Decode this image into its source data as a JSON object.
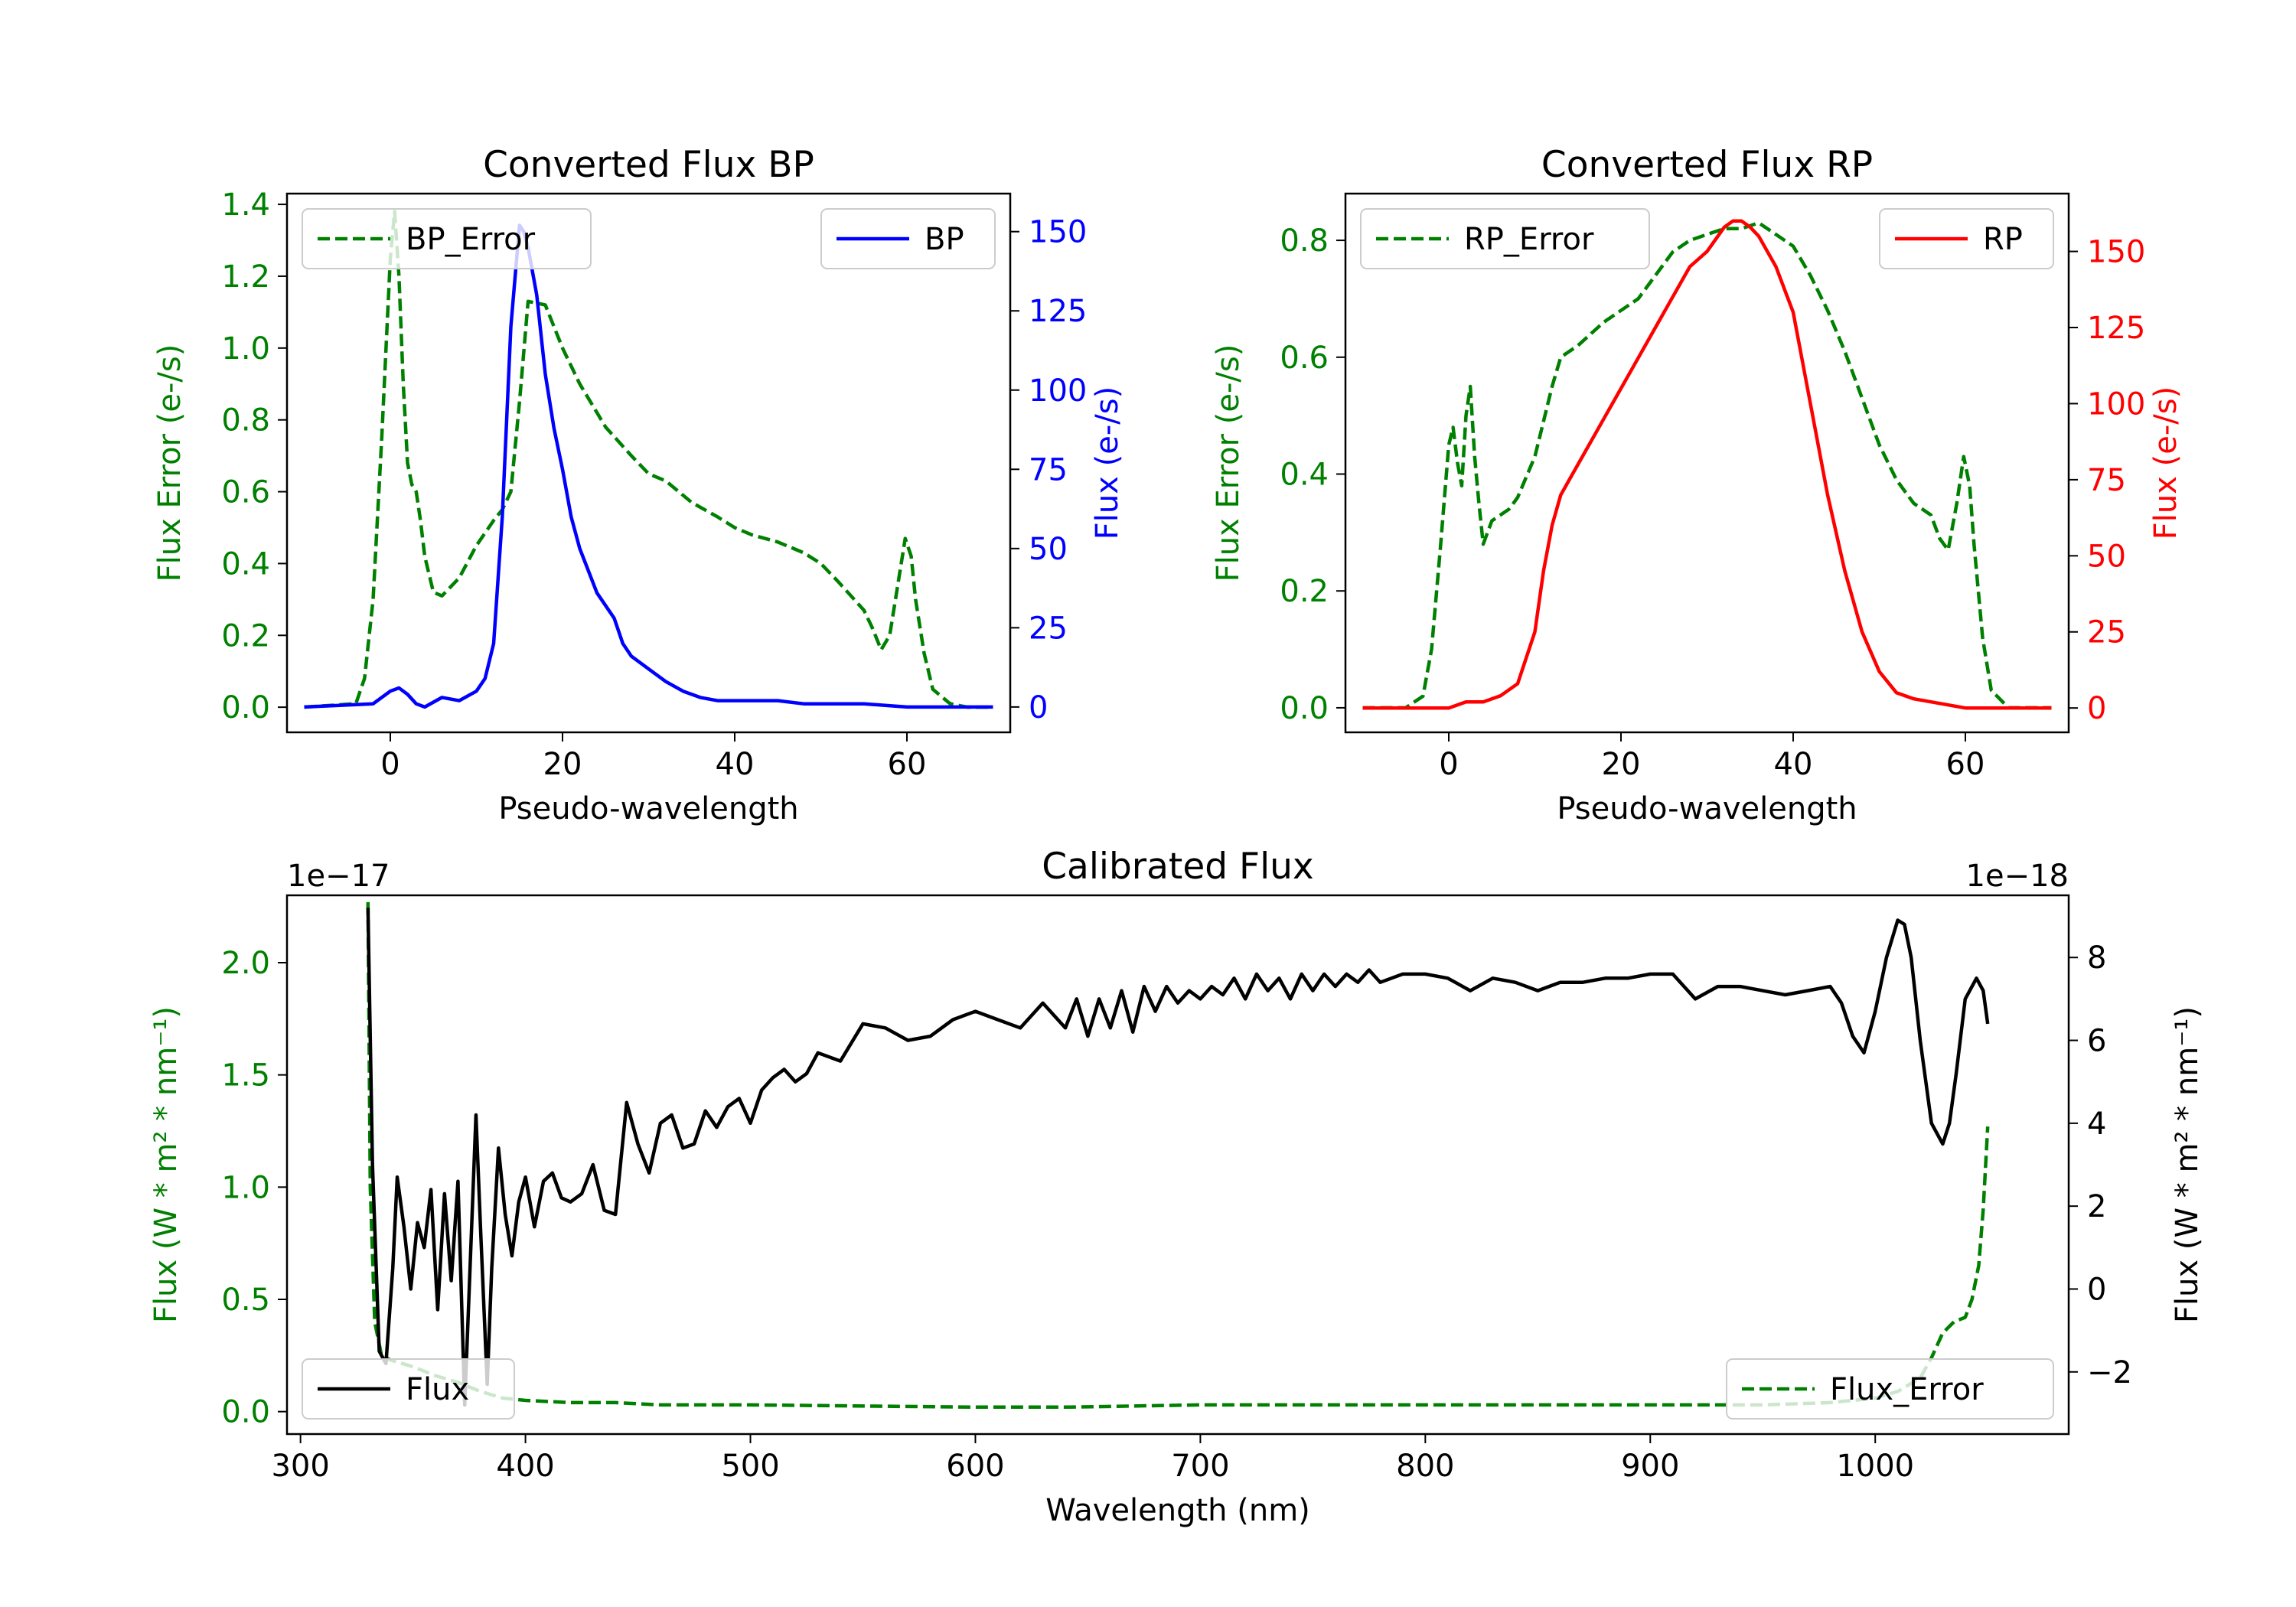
{
  "chart_data": [
    {
      "id": "bp",
      "type": "line",
      "title": "Converted Flux BP",
      "xlabel": "Pseudo-wavelength",
      "ylabel_left": "Flux Error (e-/s)",
      "ylabel_right": "Flux (e-/s)",
      "xlim": [
        -12,
        72
      ],
      "ylim_left": [
        -0.07,
        1.43
      ],
      "ylim_right": [
        -8,
        162
      ],
      "xticks": [
        0,
        20,
        40,
        60
      ],
      "yticks_left": [
        0.0,
        0.2,
        0.4,
        0.6,
        0.8,
        1.0,
        1.2,
        1.4
      ],
      "yticks_left_labels": [
        "0.0",
        "0.2",
        "0.4",
        "0.6",
        "0.8",
        "1.0",
        "1.2",
        "1.4"
      ],
      "yticks_right": [
        0,
        25,
        50,
        75,
        100,
        125,
        150
      ],
      "yticks_right_labels": [
        "0",
        "25",
        "50",
        "75",
        "100",
        "125",
        "150"
      ],
      "colors": {
        "left_axis": "#008000",
        "right_axis": "#0000ff"
      },
      "legend_left": {
        "label": "BP_Error",
        "position": "upper left"
      },
      "legend_right": {
        "label": "BP",
        "position": "upper right"
      },
      "series": [
        {
          "name": "BP_Error",
          "axis": "left",
          "style": "dashed",
          "color": "#008000",
          "x": [
            -10,
            -4,
            -3,
            -2,
            -1,
            0,
            0.5,
            1,
            1.5,
            2,
            2.5,
            3,
            3.5,
            4,
            5,
            6,
            8,
            10,
            12,
            13,
            14,
            15,
            16,
            18,
            20,
            22,
            25,
            28,
            30,
            32,
            35,
            38,
            40,
            42,
            45,
            48,
            50,
            52,
            55,
            56,
            57,
            58,
            59,
            59.8,
            60.5,
            61,
            62,
            63,
            65,
            67,
            70
          ],
          "y": [
            0.0,
            0.01,
            0.08,
            0.3,
            0.75,
            1.25,
            1.38,
            1.2,
            0.9,
            0.68,
            0.62,
            0.6,
            0.52,
            0.42,
            0.32,
            0.31,
            0.36,
            0.45,
            0.52,
            0.55,
            0.6,
            0.85,
            1.13,
            1.12,
            1.0,
            0.9,
            0.78,
            0.7,
            0.65,
            0.63,
            0.57,
            0.53,
            0.5,
            0.48,
            0.46,
            0.43,
            0.4,
            0.35,
            0.27,
            0.22,
            0.16,
            0.2,
            0.35,
            0.47,
            0.42,
            0.3,
            0.15,
            0.05,
            0.01,
            0.0,
            0.0
          ]
        },
        {
          "name": "BP",
          "axis": "right",
          "style": "solid",
          "color": "#0000ff",
          "x": [
            -10,
            -2,
            0,
            1,
            2,
            3,
            4,
            6,
            8,
            10,
            11,
            12,
            13,
            14,
            15,
            15.5,
            16,
            17,
            18,
            19,
            20,
            21,
            22,
            24,
            26,
            27,
            28,
            30,
            32,
            34,
            36,
            38,
            40,
            42,
            45,
            48,
            50,
            55,
            60,
            65,
            70
          ],
          "y": [
            0,
            1,
            5,
            6,
            4,
            1,
            0,
            3,
            2,
            5,
            9,
            20,
            60,
            120,
            152,
            150,
            145,
            130,
            105,
            88,
            75,
            60,
            50,
            36,
            28,
            20,
            16,
            12,
            8,
            5,
            3,
            2,
            2,
            2,
            2,
            1,
            1,
            1,
            0,
            0,
            0
          ]
        }
      ]
    },
    {
      "id": "rp",
      "type": "line",
      "title": "Converted Flux RP",
      "xlabel": "Pseudo-wavelength",
      "ylabel_left": "Flux Error (e-/s)",
      "ylabel_right": "Flux (e-/s)",
      "xlim": [
        -12,
        72
      ],
      "ylim_left": [
        -0.042,
        0.88
      ],
      "ylim_right": [
        -8,
        169
      ],
      "xticks": [
        0,
        20,
        40,
        60
      ],
      "yticks_left": [
        0.0,
        0.2,
        0.4,
        0.6,
        0.8
      ],
      "yticks_left_labels": [
        "0.0",
        "0.2",
        "0.4",
        "0.6",
        "0.8"
      ],
      "yticks_right": [
        0,
        25,
        50,
        75,
        100,
        125,
        150
      ],
      "yticks_right_labels": [
        "0",
        "25",
        "50",
        "75",
        "100",
        "125",
        "150"
      ],
      "colors": {
        "left_axis": "#008000",
        "right_axis": "#ff0000"
      },
      "legend_left": {
        "label": "RP_Error",
        "position": "upper left"
      },
      "legend_right": {
        "label": "RP",
        "position": "upper right"
      },
      "series": [
        {
          "name": "RP_Error",
          "axis": "left",
          "style": "dashed",
          "color": "#008000",
          "x": [
            -10,
            -5,
            -3,
            -2,
            -1,
            0,
            0.5,
            1,
            1.5,
            2,
            2.5,
            3,
            3.5,
            4,
            5,
            6,
            7,
            8,
            10,
            12,
            13,
            15,
            18,
            20,
            22,
            24,
            26,
            28,
            30,
            32,
            34,
            36,
            38,
            40,
            42,
            44,
            46,
            48,
            50,
            52,
            54,
            56,
            57,
            58,
            59,
            59.8,
            60.5,
            61,
            62,
            63,
            65,
            68,
            70
          ],
          "y": [
            0.0,
            0.0,
            0.02,
            0.1,
            0.27,
            0.45,
            0.48,
            0.42,
            0.38,
            0.5,
            0.55,
            0.43,
            0.35,
            0.28,
            0.32,
            0.33,
            0.34,
            0.36,
            0.43,
            0.55,
            0.6,
            0.62,
            0.66,
            0.68,
            0.7,
            0.74,
            0.78,
            0.8,
            0.81,
            0.82,
            0.82,
            0.83,
            0.81,
            0.79,
            0.74,
            0.68,
            0.61,
            0.53,
            0.45,
            0.39,
            0.35,
            0.33,
            0.29,
            0.27,
            0.35,
            0.43,
            0.38,
            0.28,
            0.12,
            0.03,
            0.0,
            0.0,
            0.0
          ]
        },
        {
          "name": "RP",
          "axis": "right",
          "style": "solid",
          "color": "#ff0000",
          "x": [
            -10,
            -2,
            0,
            2,
            4,
            6,
            8,
            10,
            11,
            12,
            13,
            14,
            16,
            18,
            20,
            22,
            24,
            26,
            28,
            30,
            32,
            33,
            34,
            35,
            36,
            38,
            40,
            42,
            44,
            46,
            48,
            50,
            52,
            54,
            56,
            58,
            60,
            62,
            65,
            70
          ],
          "y": [
            0,
            0,
            0,
            2,
            2,
            4,
            8,
            25,
            45,
            60,
            70,
            75,
            85,
            95,
            105,
            115,
            125,
            135,
            145,
            150,
            158,
            160,
            160,
            158,
            155,
            145,
            130,
            100,
            70,
            45,
            25,
            12,
            5,
            3,
            2,
            1,
            0,
            0,
            0,
            0
          ]
        }
      ]
    },
    {
      "id": "cal",
      "type": "line",
      "title": "Calibrated Flux",
      "xlabel": "Wavelength (nm)",
      "ylabel_left": "Flux (W * m² * nm⁻¹)",
      "ylabel_right": "Flux (W * m² * nm⁻¹)",
      "offset_left": "1e−17",
      "offset_right": "1e−18",
      "xlim": [
        294,
        1086
      ],
      "ylim_left": [
        -0.1,
        2.3
      ],
      "ylim_right": [
        -3.5,
        9.5
      ],
      "xticks": [
        300,
        400,
        500,
        600,
        700,
        800,
        900,
        1000
      ],
      "yticks_left": [
        0.0,
        0.5,
        1.0,
        1.5,
        2.0
      ],
      "yticks_left_labels": [
        "0.0",
        "0.5",
        "1.0",
        "1.5",
        "2.0"
      ],
      "yticks_right": [
        -2,
        0,
        2,
        4,
        6,
        8
      ],
      "yticks_right_labels": [
        "−2",
        "0",
        "2",
        "4",
        "6",
        "8"
      ],
      "colors": {
        "left_axis": "#008000",
        "right_axis": "#000000"
      },
      "legend_left": {
        "label": "Flux",
        "position": "lower left"
      },
      "legend_right": {
        "label": "Flux_Error",
        "position": "lower right"
      },
      "series": [
        {
          "name": "Flux_Error",
          "axis": "left",
          "style": "dashed",
          "color": "#008000",
          "x": [
            330,
            331,
            333,
            336,
            340,
            350,
            360,
            370,
            380,
            390,
            400,
            420,
            440,
            460,
            500,
            600,
            640,
            700,
            800,
            900,
            950,
            980,
            1000,
            1010,
            1020,
            1025,
            1030,
            1035,
            1040,
            1043,
            1046,
            1048,
            1050
          ],
          "y": [
            2.27,
            1.0,
            0.4,
            0.25,
            0.23,
            0.2,
            0.16,
            0.13,
            0.09,
            0.06,
            0.05,
            0.04,
            0.04,
            0.03,
            0.03,
            0.02,
            0.02,
            0.03,
            0.03,
            0.03,
            0.03,
            0.04,
            0.06,
            0.09,
            0.15,
            0.24,
            0.35,
            0.4,
            0.42,
            0.5,
            0.65,
            0.9,
            1.27
          ]
        },
        {
          "name": "Flux",
          "axis": "right",
          "style": "solid",
          "color": "#000000",
          "x": [
            330,
            332,
            335,
            338,
            341,
            343,
            346,
            349,
            352,
            355,
            358,
            361,
            364,
            367,
            370,
            373,
            375,
            378,
            380,
            383,
            385,
            388,
            391,
            394,
            397,
            400,
            404,
            408,
            412,
            416,
            420,
            425,
            430,
            435,
            440,
            445,
            450,
            455,
            460,
            465,
            470,
            475,
            480,
            485,
            490,
            495,
            500,
            505,
            510,
            515,
            520,
            525,
            530,
            540,
            550,
            560,
            570,
            580,
            590,
            600,
            610,
            620,
            630,
            640,
            645,
            650,
            655,
            660,
            665,
            670,
            675,
            680,
            685,
            690,
            695,
            700,
            705,
            710,
            715,
            720,
            725,
            730,
            735,
            740,
            745,
            750,
            755,
            760,
            765,
            770,
            775,
            780,
            790,
            800,
            810,
            820,
            830,
            840,
            850,
            860,
            870,
            880,
            890,
            900,
            910,
            920,
            930,
            940,
            950,
            960,
            970,
            980,
            985,
            990,
            995,
            1000,
            1005,
            1010,
            1013,
            1016,
            1020,
            1025,
            1030,
            1033,
            1036,
            1040,
            1045,
            1048,
            1050
          ],
          "y": [
            9.2,
            3.0,
            -1.5,
            -1.8,
            0.5,
            2.7,
            1.5,
            0.0,
            1.6,
            1.0,
            2.4,
            -0.5,
            2.3,
            0.2,
            2.6,
            -2.8,
            0.0,
            4.2,
            1.5,
            -2.3,
            0.5,
            3.4,
            1.8,
            0.8,
            2.1,
            2.7,
            1.5,
            2.6,
            2.8,
            2.2,
            2.1,
            2.3,
            3.0,
            1.9,
            1.8,
            4.5,
            3.5,
            2.8,
            4.0,
            4.2,
            3.4,
            3.5,
            4.3,
            3.9,
            4.4,
            4.6,
            4.0,
            4.8,
            5.1,
            5.3,
            5.0,
            5.2,
            5.7,
            5.5,
            6.4,
            6.3,
            6.0,
            6.1,
            6.5,
            6.7,
            6.5,
            6.3,
            6.9,
            6.3,
            7.0,
            6.1,
            7.0,
            6.3,
            7.2,
            6.2,
            7.3,
            6.7,
            7.3,
            6.9,
            7.2,
            7.0,
            7.3,
            7.1,
            7.5,
            7.0,
            7.6,
            7.2,
            7.5,
            7.0,
            7.6,
            7.2,
            7.6,
            7.3,
            7.6,
            7.4,
            7.7,
            7.4,
            7.6,
            7.6,
            7.5,
            7.2,
            7.5,
            7.4,
            7.2,
            7.4,
            7.4,
            7.5,
            7.5,
            7.6,
            7.6,
            7.0,
            7.3,
            7.3,
            7.2,
            7.1,
            7.2,
            7.3,
            6.9,
            6.1,
            5.7,
            6.7,
            8.0,
            8.9,
            8.8,
            8.0,
            6.0,
            4.0,
            3.5,
            4.0,
            5.2,
            7.0,
            7.5,
            7.2,
            6.4
          ]
        }
      ]
    }
  ]
}
